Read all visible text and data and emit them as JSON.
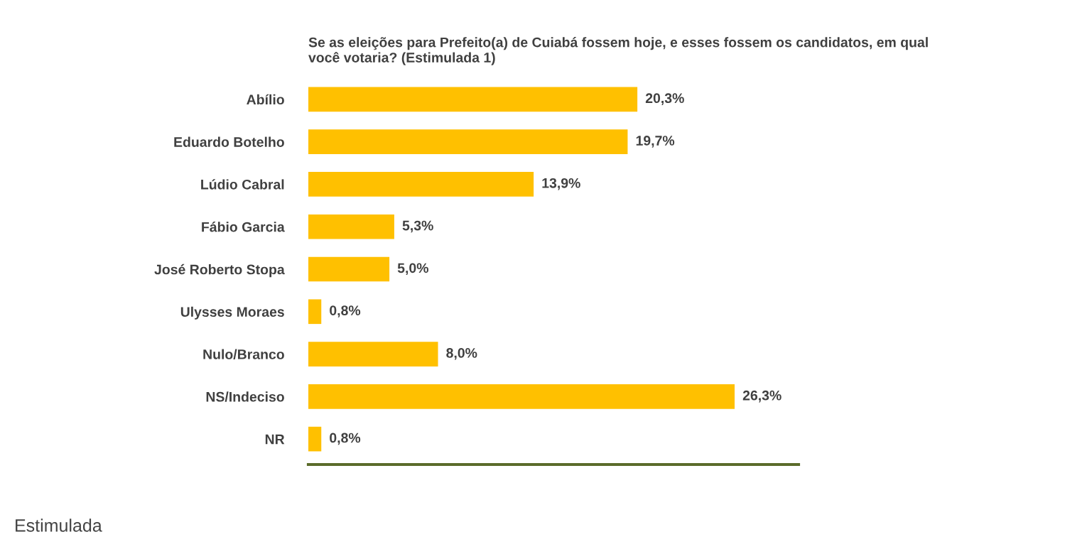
{
  "chart_data": {
    "type": "bar",
    "orientation": "horizontal",
    "title": "Se as eleições para Prefeito(a) de Cuiabá fossem hoje, e esses fossem os candidatos, em qual\nvocê votaria? (Estimulada 1)",
    "categories": [
      "Abílio",
      "Eduardo Botelho",
      "Lúdio Cabral",
      "Fábio Garcia",
      "José Roberto Stopa",
      "Ulysses Moraes",
      "Nulo/Branco",
      "NS/Indeciso",
      "NR"
    ],
    "values": [
      20.3,
      19.7,
      13.9,
      5.3,
      5.0,
      0.8,
      8.0,
      26.3,
      0.8
    ],
    "value_labels": [
      "20,3%",
      "19,7%",
      "13,9%",
      "5,3%",
      "5,0%",
      "0,8%",
      "8,0%",
      "26,3%",
      "0,8%"
    ],
    "color": "#ffc000",
    "grid": false,
    "legend": false,
    "annotations": [
      "Estimulada"
    ]
  }
}
